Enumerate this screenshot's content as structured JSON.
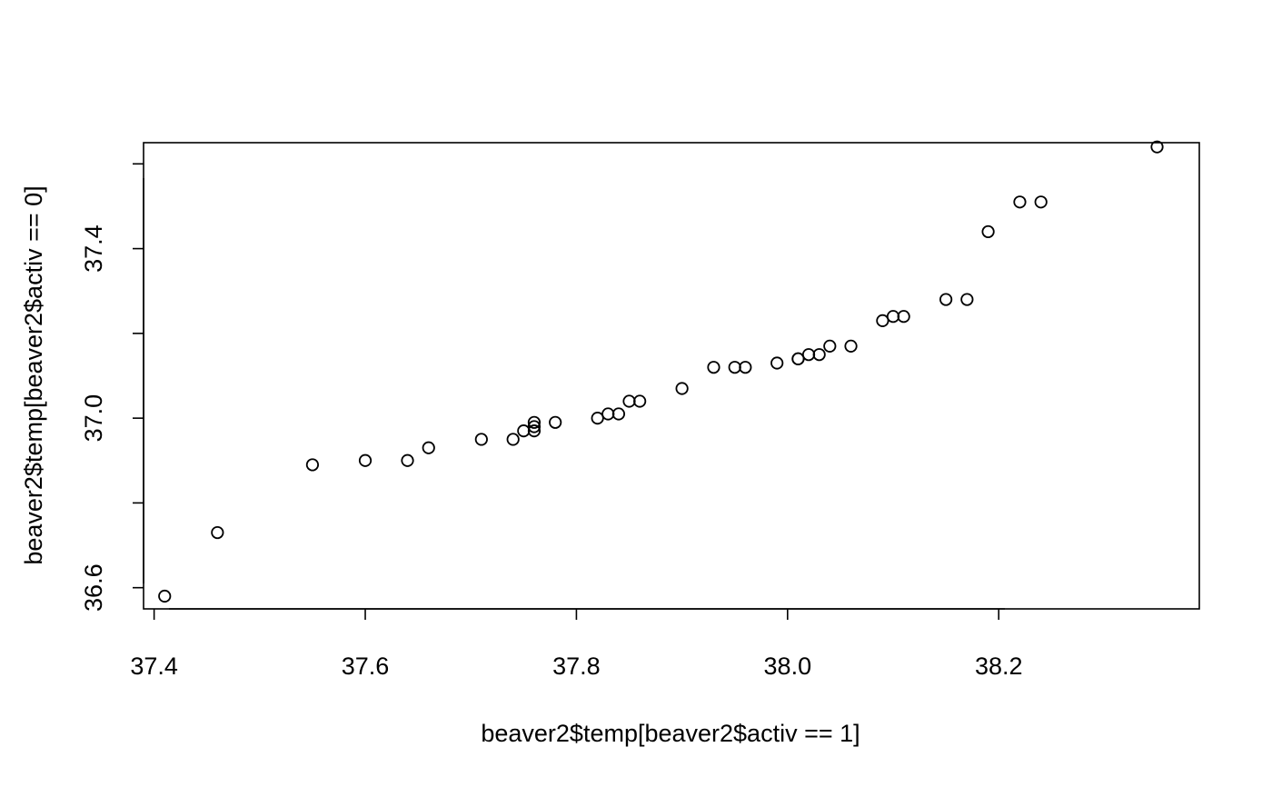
{
  "chart_data": {
    "type": "scatter",
    "title": "",
    "xlabel": "beaver2$temp[beaver2$activ == 1]",
    "ylabel": "beaver2$temp[beaver2$activ == 0]",
    "xlim": [
      37.39,
      38.39
    ],
    "ylim": [
      36.55,
      37.65
    ],
    "xticks": [
      37.4,
      37.6,
      37.8,
      38.0,
      38.2
    ],
    "xtick_labels": [
      "37.4",
      "37.6",
      "37.8",
      "38.0",
      "38.2"
    ],
    "yticks": [
      36.6,
      36.8,
      37.0,
      37.2,
      37.4,
      37.6
    ],
    "ytick_labels": [
      "36.6",
      "",
      "37.0",
      "",
      "37.4",
      ""
    ],
    "grid": false,
    "marker": "open-circle",
    "points": [
      {
        "x": 37.41,
        "y": 36.58
      },
      {
        "x": 37.46,
        "y": 36.73
      },
      {
        "x": 37.55,
        "y": 36.89
      },
      {
        "x": 37.6,
        "y": 36.9
      },
      {
        "x": 37.64,
        "y": 36.9
      },
      {
        "x": 37.66,
        "y": 36.93
      },
      {
        "x": 37.71,
        "y": 36.95
      },
      {
        "x": 37.74,
        "y": 36.95
      },
      {
        "x": 37.75,
        "y": 36.97
      },
      {
        "x": 37.76,
        "y": 36.97
      },
      {
        "x": 37.76,
        "y": 36.98
      },
      {
        "x": 37.76,
        "y": 36.99
      },
      {
        "x": 37.78,
        "y": 36.99
      },
      {
        "x": 37.82,
        "y": 37.0
      },
      {
        "x": 37.83,
        "y": 37.01
      },
      {
        "x": 37.84,
        "y": 37.01
      },
      {
        "x": 37.85,
        "y": 37.04
      },
      {
        "x": 37.86,
        "y": 37.04
      },
      {
        "x": 37.9,
        "y": 37.07
      },
      {
        "x": 37.93,
        "y": 37.12
      },
      {
        "x": 37.95,
        "y": 37.12
      },
      {
        "x": 37.96,
        "y": 37.12
      },
      {
        "x": 37.99,
        "y": 37.13
      },
      {
        "x": 38.01,
        "y": 37.14
      },
      {
        "x": 38.01,
        "y": 37.14
      },
      {
        "x": 38.02,
        "y": 37.15
      },
      {
        "x": 38.03,
        "y": 37.15
      },
      {
        "x": 38.04,
        "y": 37.17
      },
      {
        "x": 38.06,
        "y": 37.17
      },
      {
        "x": 38.09,
        "y": 37.23
      },
      {
        "x": 38.1,
        "y": 37.24
      },
      {
        "x": 38.11,
        "y": 37.24
      },
      {
        "x": 38.15,
        "y": 37.28
      },
      {
        "x": 38.17,
        "y": 37.28
      },
      {
        "x": 38.19,
        "y": 37.44
      },
      {
        "x": 38.22,
        "y": 37.51
      },
      {
        "x": 38.24,
        "y": 37.51
      },
      {
        "x": 38.35,
        "y": 37.64
      }
    ]
  }
}
